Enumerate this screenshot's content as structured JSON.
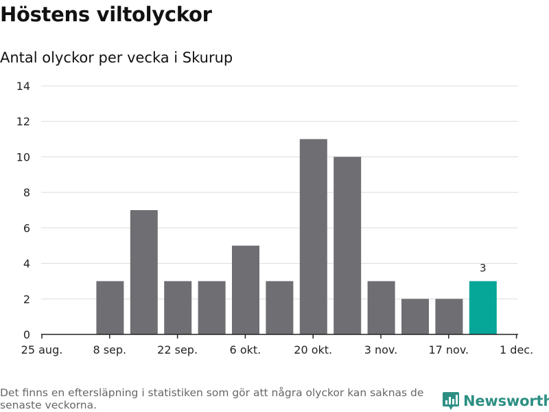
{
  "header": {
    "title": "Höstens viltolyckor",
    "subtitle": "Antal olyckor per vecka i Skurup"
  },
  "footer": {
    "note": "Det finns en eftersläpning i statistiken som gör att några olyckor kan saknas de senaste veckorna.",
    "brand": "Newsworthy",
    "brand_icon": "bar-chart-logo-icon"
  },
  "colors": {
    "bar": "#6f6e73",
    "highlight": "#06a698",
    "grid": "#dcdcdc",
    "axis": "#222222",
    "brand": "#2d8f84"
  },
  "chart_data": {
    "type": "bar",
    "title": "Höstens viltolyckor",
    "subtitle": "Antal olyckor per vecka i Skurup",
    "xlabel": "",
    "ylabel": "",
    "x_ticks": [
      "25 aug.",
      "8 sep.",
      "22 sep.",
      "6 okt.",
      "20 okt.",
      "3 nov.",
      "17 nov.",
      "1 dec."
    ],
    "weeks": [
      "1 sep.",
      "8 sep.",
      "15 sep.",
      "22 sep.",
      "29 sep.",
      "6 okt.",
      "13 okt.",
      "20 okt.",
      "27 okt.",
      "3 nov.",
      "10 nov.",
      "17 nov.",
      "24 nov."
    ],
    "values": [
      0,
      3,
      7,
      3,
      3,
      5,
      3,
      11,
      10,
      3,
      2,
      2,
      3
    ],
    "highlight_last": true,
    "highlight_label": "3",
    "ylim": [
      0,
      14
    ],
    "y_ticks": [
      0,
      2,
      4,
      6,
      8,
      10,
      12,
      14
    ],
    "grid": true,
    "legend": "none"
  }
}
